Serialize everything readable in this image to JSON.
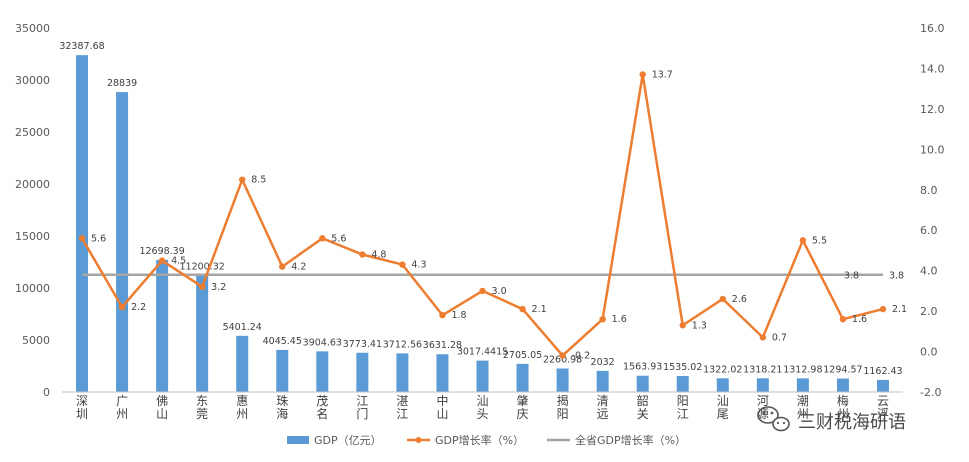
{
  "chart_data": {
    "type": "bar",
    "categories": [
      "深圳",
      "广州",
      "佛山",
      "东莞",
      "惠州",
      "珠海",
      "茂名",
      "江门",
      "湛江",
      "中山",
      "汕头",
      "肇庆",
      "揭阳",
      "清远",
      "韶关",
      "阳江",
      "汕尾",
      "河源",
      "潮州",
      "梅州",
      "云浮"
    ],
    "series": [
      {
        "name": "GDP（亿元）",
        "type": "bar",
        "axis": "left",
        "color": "#5B9BD5",
        "values": [
          32387.68,
          28839,
          12698.39,
          11200.32,
          5401.24,
          4045.45,
          3904.63,
          3773.41,
          3712.56,
          3631.28,
          3017.4415,
          2705.05,
          2260.98,
          2032,
          1563.93,
          1535.02,
          1322.02,
          1318.21,
          1312.98,
          1294.57,
          1162.43
        ],
        "labels": [
          "32387.68",
          "28839",
          "12698.39",
          "11200.32",
          "5401.24",
          "4045.45",
          "3904.63",
          "3773.41",
          "3712.56",
          "3631.28",
          "3017.4415",
          "2705.05",
          "2260.98",
          "2032",
          "1563.93",
          "1535.02",
          "1322.02",
          "1318.21",
          "1312.98",
          "1294.57",
          "1162.43"
        ]
      },
      {
        "name": "GDP增长率（%）",
        "type": "line",
        "axis": "right",
        "color": "#ED7D31",
        "values": [
          5.6,
          2.2,
          4.5,
          3.2,
          8.5,
          4.2,
          5.6,
          4.8,
          4.3,
          1.8,
          3.0,
          2.1,
          -0.2,
          1.6,
          13.7,
          1.3,
          2.6,
          0.7,
          5.5,
          1.6,
          2.1
        ],
        "labels": [
          "5.6",
          "2.2",
          "4.5",
          "3.2",
          "8.5",
          "4.2",
          "5.6",
          "4.8",
          "4.3",
          "1.8",
          "3.0",
          "2.1",
          "-0.2",
          "1.6",
          "13.7",
          "1.3",
          "2.6",
          "0.7",
          "5.5",
          "1.6",
          "2.1"
        ]
      },
      {
        "name": "全省GDP增长率（%）",
        "type": "line",
        "axis": "right",
        "color": "#A5A5A5",
        "values": [
          3.8,
          3.8,
          3.8,
          3.8,
          3.8,
          3.8,
          3.8,
          3.8,
          3.8,
          3.8,
          3.8,
          3.8,
          3.8,
          3.8,
          3.8,
          3.8,
          3.8,
          3.8,
          3.8,
          3.8,
          3.8
        ],
        "labels": [
          "3.8",
          "3.8"
        ]
      }
    ],
    "y_left": {
      "min": 0,
      "max": 35000,
      "step": 5000,
      "ticks": [
        "0",
        "5000",
        "10000",
        "15000",
        "20000",
        "25000",
        "30000",
        "35000"
      ]
    },
    "y_right": {
      "min": -2,
      "max": 16,
      "step": 2,
      "ticks": [
        "-2.0",
        "0.0",
        "2.0",
        "4.0",
        "6.0",
        "8.0",
        "10.0",
        "12.0",
        "14.0",
        "16.0"
      ]
    },
    "legend_position": "bottom",
    "grid": false
  },
  "watermark": {
    "text": "三财税海研语",
    "icon": "wechat-icon"
  }
}
